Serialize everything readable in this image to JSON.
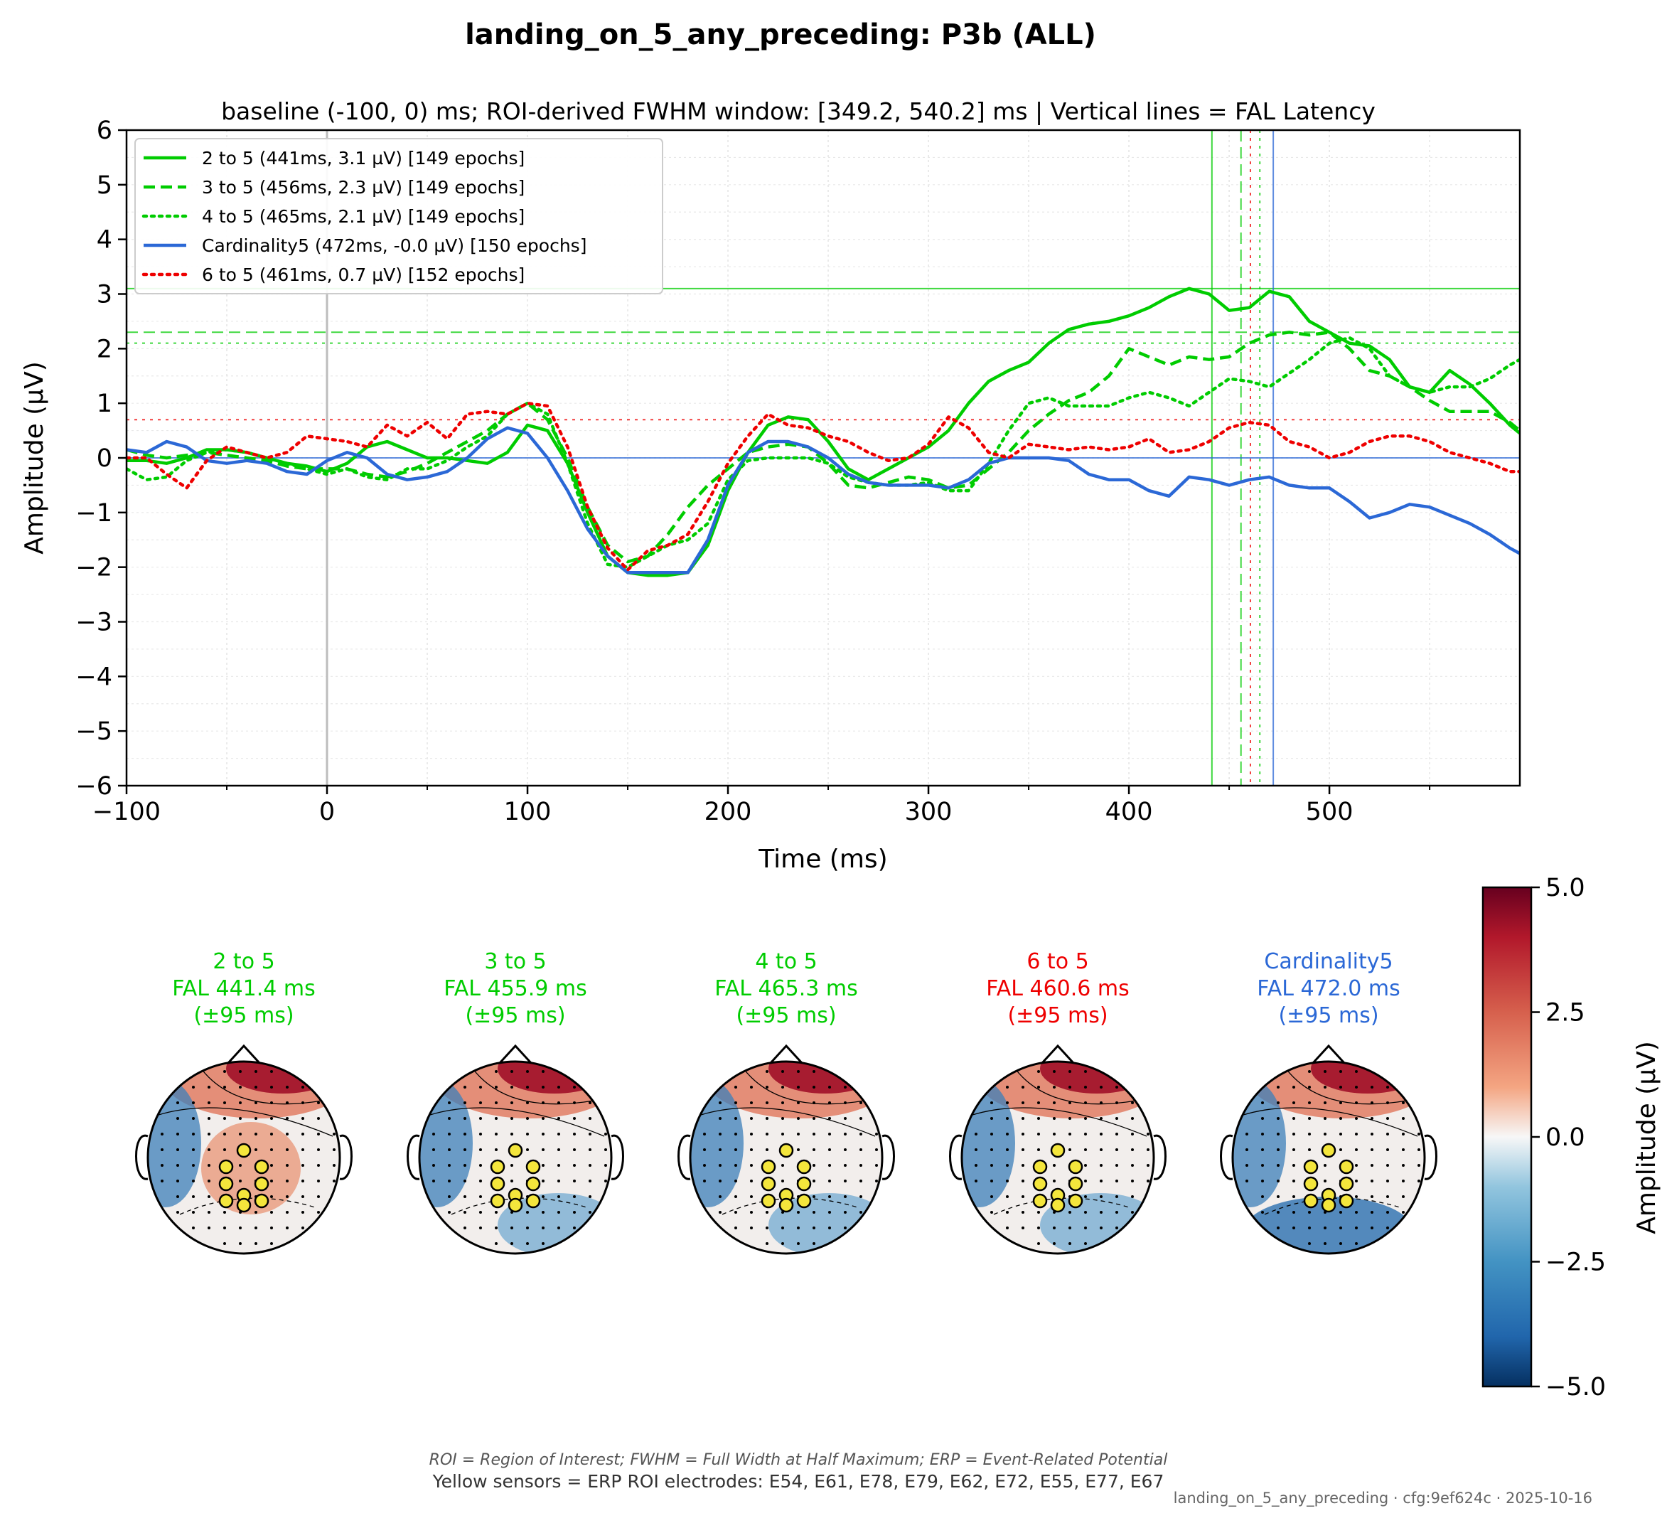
{
  "figure": {
    "title": "landing_on_5_any_preceding: P3b (ALL)",
    "subtitle": "baseline (-100, 0) ms; ROI-derived FWHM window: [349.2, 540.2] ms | Vertical lines = FAL Latency",
    "footnote_italic": "ROI = Region of Interest; FWHM = Full Width at Half Maximum; ERP = Event-Related Potential",
    "footnote_sensors": "Yellow sensors = ERP ROI electrodes: E54, E61, E78, E79, E62, E72, E55, E77, E67",
    "stamp": "landing_on_5_any_preceding · cfg:9ef624c · 2025-10-16"
  },
  "colorbar": {
    "label": "Amplitude (µV)",
    "ticks": [
      "5.0",
      "2.5",
      "0.0",
      "−2.5",
      "−5.0"
    ],
    "range": [
      -5,
      5
    ],
    "colormap": "RdBu_r"
  },
  "topomaps": [
    {
      "name": "2 to 5",
      "fal": "FAL 441.4 ms",
      "window": "(±95 ms)",
      "color": "#00cc00"
    },
    {
      "name": "3 to 5",
      "fal": "FAL 455.9 ms",
      "window": "(±95 ms)",
      "color": "#00cc00"
    },
    {
      "name": "4 to 5",
      "fal": "FAL 465.3 ms",
      "window": "(±95 ms)",
      "color": "#00cc00"
    },
    {
      "name": "6 to 5",
      "fal": "FAL 460.6 ms",
      "window": "(±95 ms)",
      "color": "#ee0000"
    },
    {
      "name": "Cardinality5",
      "fal": "FAL 472.0 ms",
      "window": "(±95 ms)",
      "color": "#2b68d6"
    }
  ],
  "chart_data": {
    "type": "line",
    "xlabel": "Time (ms)",
    "ylabel": "Amplitude (µV)",
    "xlim": [
      -100,
      595
    ],
    "ylim": [
      -6,
      6
    ],
    "xticks": [
      -100,
      0,
      100,
      200,
      300,
      400,
      500
    ],
    "xtick_labels": [
      "−100",
      "0",
      "100",
      "200",
      "300",
      "400",
      "500"
    ],
    "yticks": [
      6,
      5,
      4,
      3,
      2,
      1,
      0,
      -1,
      -2,
      -3,
      -4,
      -5,
      -6
    ],
    "ytick_labels": [
      "6",
      "5",
      "4",
      "3",
      "2",
      "1",
      "0",
      "−1",
      "−2",
      "−3",
      "−4",
      "−5",
      "−6"
    ],
    "grid": true,
    "legend_position": "top-left",
    "stimulus_line_x": 0,
    "series": [
      {
        "name": "2 to 5 (441ms, 3.1 µV) [149 epochs]",
        "color": "#00cc00",
        "dash": "solid",
        "fal_latency": 441.4,
        "fal_amplitude": 3.1,
        "x": [
          -100,
          -90,
          -80,
          -70,
          -60,
          -50,
          -40,
          -30,
          -20,
          -10,
          0,
          10,
          20,
          30,
          40,
          50,
          60,
          70,
          80,
          90,
          100,
          110,
          120,
          130,
          140,
          150,
          160,
          170,
          180,
          190,
          200,
          210,
          220,
          230,
          240,
          250,
          260,
          270,
          280,
          290,
          300,
          310,
          320,
          330,
          340,
          350,
          360,
          370,
          380,
          390,
          400,
          410,
          420,
          430,
          440,
          450,
          460,
          470,
          480,
          490,
          500,
          510,
          520,
          530,
          540,
          550,
          560,
          570,
          580,
          590,
          595
        ],
        "y": [
          -0.05,
          -0.05,
          -0.1,
          0.0,
          0.15,
          0.15,
          0.1,
          0.0,
          -0.1,
          -0.15,
          -0.25,
          -0.1,
          0.2,
          0.3,
          0.15,
          0.0,
          0.0,
          -0.05,
          -0.1,
          0.1,
          0.6,
          0.5,
          -0.1,
          -1.0,
          -1.8,
          -2.1,
          -2.15,
          -2.15,
          -2.1,
          -1.6,
          -0.6,
          0.1,
          0.6,
          0.75,
          0.7,
          0.3,
          -0.2,
          -0.4,
          -0.2,
          0.0,
          0.2,
          0.5,
          1.0,
          1.4,
          1.6,
          1.75,
          2.1,
          2.35,
          2.45,
          2.5,
          2.6,
          2.75,
          2.95,
          3.1,
          3.0,
          2.7,
          2.75,
          3.05,
          2.95,
          2.5,
          2.3,
          2.1,
          2.05,
          1.8,
          1.3,
          1.2,
          1.6,
          1.35,
          1.0,
          0.6,
          0.45
        ]
      },
      {
        "name": "3 to 5 (456ms, 2.3 µV) [149 epochs]",
        "color": "#00cc00",
        "dash": "dashed",
        "fal_latency": 455.9,
        "fal_amplitude": 2.3,
        "x": [
          -100,
          -90,
          -80,
          -70,
          -60,
          -50,
          -40,
          -30,
          -20,
          -10,
          0,
          10,
          20,
          30,
          40,
          50,
          60,
          70,
          80,
          90,
          100,
          110,
          120,
          130,
          140,
          150,
          160,
          170,
          180,
          190,
          200,
          210,
          220,
          230,
          240,
          250,
          260,
          270,
          280,
          290,
          300,
          310,
          320,
          330,
          340,
          350,
          360,
          370,
          380,
          390,
          400,
          410,
          420,
          430,
          440,
          450,
          460,
          470,
          480,
          490,
          500,
          510,
          520,
          530,
          540,
          550,
          560,
          570,
          580,
          590,
          595
        ],
        "y": [
          0.15,
          0.05,
          0.0,
          0.05,
          0.1,
          0.05,
          0.0,
          -0.05,
          -0.15,
          -0.2,
          -0.2,
          -0.2,
          -0.3,
          -0.35,
          -0.25,
          -0.1,
          0.1,
          0.3,
          0.5,
          0.8,
          1.0,
          0.7,
          0.0,
          -0.9,
          -1.6,
          -1.9,
          -1.8,
          -1.4,
          -0.9,
          -0.5,
          -0.2,
          0.1,
          0.2,
          0.25,
          0.2,
          -0.1,
          -0.5,
          -0.55,
          -0.45,
          -0.35,
          -0.4,
          -0.55,
          -0.5,
          -0.2,
          0.1,
          0.5,
          0.8,
          1.05,
          1.2,
          1.5,
          2.0,
          1.85,
          1.7,
          1.85,
          1.8,
          1.85,
          2.1,
          2.25,
          2.3,
          2.25,
          2.3,
          2.0,
          1.6,
          1.5,
          1.3,
          1.05,
          0.85,
          0.85,
          0.85,
          0.65,
          0.5
        ]
      },
      {
        "name": "4 to 5 (465ms, 2.1 µV) [149 epochs]",
        "color": "#00cc00",
        "dash": "dotted",
        "fal_latency": 465.3,
        "fal_amplitude": 2.1,
        "x": [
          -100,
          -90,
          -80,
          -70,
          -60,
          -50,
          -40,
          -30,
          -20,
          -10,
          0,
          10,
          20,
          30,
          40,
          50,
          60,
          70,
          80,
          90,
          100,
          110,
          120,
          130,
          140,
          150,
          160,
          170,
          180,
          190,
          200,
          210,
          220,
          230,
          240,
          250,
          260,
          270,
          280,
          290,
          300,
          310,
          320,
          330,
          340,
          350,
          360,
          370,
          380,
          390,
          400,
          410,
          420,
          430,
          440,
          450,
          460,
          470,
          480,
          490,
          500,
          510,
          520,
          530,
          540,
          550,
          560,
          570,
          580,
          590,
          595
        ],
        "y": [
          -0.2,
          -0.4,
          -0.35,
          -0.05,
          0.1,
          0.15,
          0.1,
          0.0,
          -0.1,
          -0.2,
          -0.3,
          -0.2,
          -0.35,
          -0.4,
          -0.2,
          -0.2,
          -0.05,
          0.2,
          0.4,
          0.8,
          1.0,
          0.8,
          -0.1,
          -1.2,
          -1.95,
          -2.0,
          -1.8,
          -1.6,
          -1.5,
          -1.2,
          -0.4,
          -0.05,
          0.0,
          0.0,
          0.0,
          -0.1,
          -0.35,
          -0.45,
          -0.5,
          -0.5,
          -0.45,
          -0.6,
          -0.6,
          -0.1,
          0.5,
          1.0,
          1.1,
          0.95,
          0.95,
          0.95,
          1.1,
          1.2,
          1.1,
          0.95,
          1.2,
          1.45,
          1.4,
          1.3,
          1.55,
          1.8,
          2.1,
          2.2,
          2.0,
          1.5,
          1.3,
          1.2,
          1.3,
          1.3,
          1.45,
          1.7,
          1.8
        ]
      },
      {
        "name": "Cardinality5 (472ms, -0.0 µV) [150 epochs]",
        "color": "#2b68d6",
        "dash": "solid",
        "fal_latency": 472.0,
        "fal_amplitude": -0.0,
        "x": [
          -100,
          -90,
          -80,
          -70,
          -60,
          -50,
          -40,
          -30,
          -20,
          -10,
          0,
          10,
          20,
          30,
          40,
          50,
          60,
          70,
          80,
          90,
          100,
          110,
          120,
          130,
          140,
          150,
          160,
          170,
          180,
          190,
          200,
          210,
          220,
          230,
          240,
          250,
          260,
          270,
          280,
          290,
          300,
          310,
          320,
          330,
          340,
          350,
          360,
          370,
          380,
          390,
          400,
          410,
          420,
          430,
          440,
          450,
          460,
          470,
          480,
          490,
          500,
          510,
          520,
          530,
          540,
          550,
          560,
          570,
          580,
          590,
          595
        ],
        "y": [
          0.15,
          0.1,
          0.3,
          0.2,
          -0.05,
          -0.1,
          -0.05,
          -0.1,
          -0.25,
          -0.3,
          -0.05,
          0.1,
          0.0,
          -0.3,
          -0.4,
          -0.35,
          -0.25,
          0.0,
          0.35,
          0.55,
          0.45,
          0.0,
          -0.6,
          -1.3,
          -1.8,
          -2.1,
          -2.1,
          -2.1,
          -2.1,
          -1.5,
          -0.5,
          0.1,
          0.3,
          0.3,
          0.2,
          0.0,
          -0.3,
          -0.45,
          -0.5,
          -0.5,
          -0.5,
          -0.55,
          -0.4,
          -0.1,
          0.0,
          0.0,
          0.0,
          -0.05,
          -0.3,
          -0.4,
          -0.4,
          -0.6,
          -0.7,
          -0.35,
          -0.4,
          -0.5,
          -0.4,
          -0.35,
          -0.5,
          -0.55,
          -0.55,
          -0.8,
          -1.1,
          -1.0,
          -0.85,
          -0.9,
          -1.05,
          -1.2,
          -1.4,
          -1.65,
          -1.75
        ]
      },
      {
        "name": "6 to 5 (461ms, 0.7 µV) [152 epochs]",
        "color": "#ee0000",
        "dash": "dotted",
        "fal_latency": 460.6,
        "fal_amplitude": 0.7,
        "x": [
          -100,
          -90,
          -80,
          -70,
          -60,
          -50,
          -40,
          -30,
          -20,
          -10,
          0,
          10,
          20,
          30,
          40,
          50,
          60,
          70,
          80,
          90,
          100,
          110,
          120,
          130,
          140,
          150,
          160,
          170,
          180,
          190,
          200,
          210,
          220,
          230,
          240,
          250,
          260,
          270,
          280,
          290,
          300,
          310,
          320,
          330,
          340,
          350,
          360,
          370,
          380,
          390,
          400,
          410,
          420,
          430,
          440,
          450,
          460,
          470,
          480,
          490,
          500,
          510,
          520,
          530,
          540,
          550,
          560,
          570,
          580,
          590,
          595
        ],
        "y": [
          0.0,
          0.0,
          -0.3,
          -0.55,
          -0.05,
          0.2,
          0.1,
          0.0,
          0.1,
          0.4,
          0.35,
          0.3,
          0.2,
          0.6,
          0.4,
          0.65,
          0.35,
          0.8,
          0.85,
          0.8,
          1.0,
          0.95,
          0.2,
          -0.9,
          -1.65,
          -2.05,
          -1.7,
          -1.6,
          -1.4,
          -0.8,
          -0.1,
          0.4,
          0.8,
          0.6,
          0.55,
          0.4,
          0.3,
          0.1,
          -0.05,
          0.0,
          0.25,
          0.75,
          0.55,
          0.1,
          0.0,
          0.25,
          0.2,
          0.15,
          0.2,
          0.15,
          0.2,
          0.35,
          0.1,
          0.15,
          0.3,
          0.55,
          0.65,
          0.6,
          0.3,
          0.2,
          0.0,
          0.1,
          0.3,
          0.4,
          0.4,
          0.3,
          0.1,
          0.0,
          -0.1,
          -0.25,
          -0.25
        ]
      }
    ]
  }
}
